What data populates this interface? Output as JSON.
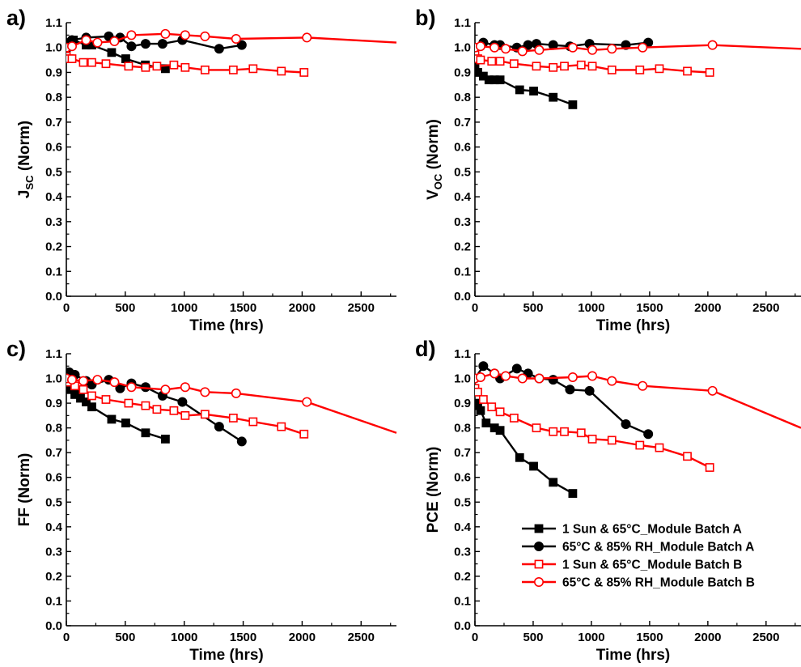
{
  "chart_data": [
    {
      "panel": "a)",
      "type": "line",
      "xlabel": "Time (hrs)",
      "ylabel": "J",
      "ylabel_sub": "SC",
      "ylabel_suffix": " (Norm)",
      "xlim": [
        0,
        2800
      ],
      "ylim": [
        0.0,
        1.1
      ],
      "xticks": [
        "0",
        "500",
        "1000",
        "1500",
        "2000",
        "2500"
      ],
      "yticks": [
        "0.0",
        "0.1",
        "0.2",
        "0.3",
        "0.4",
        "0.5",
        "0.6",
        "0.7",
        "0.8",
        "0.9",
        "1.0",
        "1.1"
      ],
      "series": [
        {
          "name": "1 Sun & 65°C_Module Batch A",
          "color": "#000000",
          "marker": "square-filled",
          "x": [
            0,
            24,
            60,
            168,
            216,
            384,
            504,
            670,
            840
          ],
          "y": [
            1.0,
            1.02,
            1.03,
            1.01,
            1.01,
            0.98,
            0.955,
            0.93,
            0.915
          ]
        },
        {
          "name": "65°C & 85% RH_Module Batch A",
          "color": "#000000",
          "marker": "circle-filled",
          "x": [
            0,
            48,
            168,
            360,
            456,
            552,
            672,
            816,
            984,
            1296,
            1488
          ],
          "y": [
            1.0,
            1.03,
            1.04,
            1.045,
            1.04,
            1.005,
            1.015,
            1.015,
            1.03,
            0.995,
            1.01
          ]
        },
        {
          "name": "1 Sun & 65°C_Module Batch B",
          "color": "#ff0000",
          "marker": "square-open",
          "x": [
            0,
            24,
            48,
            144,
            216,
            336,
            528,
            672,
            768,
            912,
            1008,
            1176,
            1416,
            1584,
            1824,
            2016
          ],
          "y": [
            0.965,
            0.955,
            0.955,
            0.94,
            0.94,
            0.935,
            0.925,
            0.92,
            0.925,
            0.93,
            0.92,
            0.91,
            0.91,
            0.915,
            0.905,
            0.9
          ]
        },
        {
          "name": "65°C & 85% RH_Module Batch B",
          "color": "#ff0000",
          "marker": "circle-open",
          "x": [
            0,
            48,
            168,
            264,
            408,
            552,
            840,
            1008,
            1176,
            1440,
            2040,
            2800
          ],
          "y": [
            1.0,
            1.005,
            1.03,
            1.02,
            1.025,
            1.05,
            1.055,
            1.05,
            1.045,
            1.035,
            1.04,
            1.02
          ]
        }
      ]
    },
    {
      "panel": "b)",
      "type": "line",
      "xlabel": "Time (hrs)",
      "ylabel": "V",
      "ylabel_sub": "OC",
      "ylabel_suffix": " (Norm)",
      "xlim": [
        0,
        2800
      ],
      "ylim": [
        0.0,
        1.1
      ],
      "xticks": [
        "0",
        "500",
        "1000",
        "1500",
        "2000",
        "2500"
      ],
      "yticks": [
        "0.0",
        "0.1",
        "0.2",
        "0.3",
        "0.4",
        "0.5",
        "0.6",
        "0.7",
        "0.8",
        "0.9",
        "1.0",
        "1.1"
      ],
      "series": [
        {
          "name": "1 Sun & 65°C_Module Batch A",
          "color": "#000000",
          "marker": "square-filled",
          "x": [
            0,
            24,
            72,
            120,
            168,
            216,
            384,
            504,
            672,
            840
          ],
          "y": [
            0.93,
            0.9,
            0.885,
            0.87,
            0.87,
            0.87,
            0.83,
            0.825,
            0.8,
            0.77
          ]
        },
        {
          "name": "65°C & 85% RH_Module Batch A",
          "color": "#000000",
          "marker": "circle-filled",
          "x": [
            0,
            72,
            168,
            216,
            360,
            456,
            528,
            672,
            816,
            984,
            1296,
            1488
          ],
          "y": [
            1.0,
            1.02,
            1.01,
            1.01,
            1.0,
            1.01,
            1.015,
            1.01,
            1.005,
            1.015,
            1.01,
            1.02
          ]
        },
        {
          "name": "1 Sun & 65°C_Module Batch B",
          "color": "#ff0000",
          "marker": "square-open",
          "x": [
            0,
            24,
            48,
            144,
            216,
            336,
            528,
            672,
            768,
            912,
            1008,
            1176,
            1416,
            1584,
            1824,
            2016
          ],
          "y": [
            0.97,
            0.955,
            0.95,
            0.945,
            0.945,
            0.935,
            0.925,
            0.92,
            0.925,
            0.93,
            0.925,
            0.91,
            0.91,
            0.915,
            0.905,
            0.9
          ]
        },
        {
          "name": "65°C & 85% RH_Module Batch B",
          "color": "#ff0000",
          "marker": "circle-open",
          "x": [
            0,
            48,
            168,
            264,
            408,
            552,
            840,
            1008,
            1176,
            1440,
            2040,
            2800
          ],
          "y": [
            1.0,
            1.005,
            1.0,
            0.995,
            0.985,
            0.99,
            1.0,
            0.99,
            0.995,
            1.0,
            1.01,
            0.995
          ]
        }
      ]
    },
    {
      "panel": "c)",
      "type": "line",
      "xlabel": "Time (hrs)",
      "ylabel": "FF (Norm)",
      "ylabel_sub": "",
      "ylabel_suffix": "",
      "xlim": [
        0,
        2800
      ],
      "ylim": [
        0.0,
        1.1
      ],
      "xticks": [
        "0",
        "500",
        "1000",
        "1500",
        "2000",
        "2500"
      ],
      "yticks": [
        "0.0",
        "0.1",
        "0.2",
        "0.3",
        "0.4",
        "0.5",
        "0.6",
        "0.7",
        "0.8",
        "0.9",
        "1.0",
        "1.1"
      ],
      "series": [
        {
          "name": "1 Sun & 65°C_Module Batch A",
          "color": "#000000",
          "marker": "square-filled",
          "x": [
            0,
            24,
            72,
            120,
            168,
            216,
            384,
            504,
            672,
            840
          ],
          "y": [
            0.97,
            0.955,
            0.935,
            0.92,
            0.905,
            0.885,
            0.835,
            0.82,
            0.78,
            0.755
          ]
        },
        {
          "name": "65°C & 85% RH_Module Batch A",
          "color": "#000000",
          "marker": "circle-filled",
          "x": [
            0,
            24,
            72,
            168,
            216,
            360,
            456,
            552,
            672,
            816,
            984,
            1296,
            1488
          ],
          "y": [
            1.0,
            1.025,
            1.015,
            0.99,
            0.975,
            0.995,
            0.96,
            0.98,
            0.965,
            0.93,
            0.905,
            0.805,
            0.745
          ]
        },
        {
          "name": "1 Sun & 65°C_Module Batch B",
          "color": "#ff0000",
          "marker": "square-open",
          "x": [
            0,
            24,
            72,
            144,
            216,
            336,
            528,
            672,
            768,
            912,
            1008,
            1176,
            1416,
            1584,
            1824,
            2016
          ],
          "y": [
            0.99,
            0.985,
            0.97,
            0.955,
            0.93,
            0.915,
            0.9,
            0.89,
            0.875,
            0.87,
            0.85,
            0.855,
            0.84,
            0.825,
            0.805,
            0.775
          ]
        },
        {
          "name": "65°C & 85% RH_Module Batch B",
          "color": "#ff0000",
          "marker": "circle-open",
          "x": [
            0,
            48,
            144,
            264,
            408,
            552,
            840,
            1008,
            1176,
            1440,
            2040,
            2800
          ],
          "y": [
            1.0,
            0.995,
            0.99,
            0.995,
            0.985,
            0.965,
            0.955,
            0.965,
            0.945,
            0.94,
            0.905,
            0.78
          ]
        }
      ]
    },
    {
      "panel": "d)",
      "type": "line",
      "xlabel": "Time (hrs)",
      "ylabel": "PCE (Norm)",
      "ylabel_sub": "",
      "ylabel_suffix": "",
      "xlim": [
        0,
        2800
      ],
      "ylim": [
        0.0,
        1.1
      ],
      "xticks": [
        "0",
        "500",
        "1000",
        "1500",
        "2000",
        "2500"
      ],
      "yticks": [
        "0.0",
        "0.1",
        "0.2",
        "0.3",
        "0.4",
        "0.5",
        "0.6",
        "0.7",
        "0.8",
        "0.9",
        "1.0",
        "1.1"
      ],
      "legend_position": "bottom-right",
      "series": [
        {
          "name": "1 Sun & 65°C_Module Batch A",
          "color": "#000000",
          "marker": "square-filled",
          "x": [
            0,
            24,
            48,
            96,
            168,
            216,
            384,
            504,
            672,
            840
          ],
          "y": [
            0.9,
            0.89,
            0.87,
            0.82,
            0.8,
            0.79,
            0.68,
            0.645,
            0.58,
            0.535
          ]
        },
        {
          "name": "65°C & 85% RH_Module Batch A",
          "color": "#000000",
          "marker": "circle-filled",
          "x": [
            0,
            72,
            168,
            216,
            360,
            456,
            552,
            672,
            816,
            984,
            1296,
            1488
          ],
          "y": [
            1.0,
            1.05,
            1.02,
            1.0,
            1.04,
            1.02,
            1.0,
            0.995,
            0.955,
            0.95,
            0.815,
            0.775
          ]
        },
        {
          "name": "1 Sun & 65°C_Module Batch B",
          "color": "#ff0000",
          "marker": "square-open",
          "x": [
            0,
            24,
            72,
            144,
            216,
            336,
            528,
            672,
            768,
            912,
            1008,
            1176,
            1416,
            1584,
            1824,
            2016
          ],
          "y": [
            0.96,
            0.945,
            0.915,
            0.885,
            0.865,
            0.84,
            0.8,
            0.785,
            0.785,
            0.78,
            0.755,
            0.75,
            0.73,
            0.72,
            0.685,
            0.64
          ]
        },
        {
          "name": "65°C & 85% RH_Module Batch B",
          "color": "#ff0000",
          "marker": "circle-open",
          "x": [
            0,
            48,
            168,
            264,
            408,
            552,
            840,
            1008,
            1176,
            1440,
            2040,
            2800
          ],
          "y": [
            1.0,
            1.005,
            1.02,
            1.01,
            1.0,
            1.0,
            1.005,
            1.01,
            0.99,
            0.97,
            0.95,
            0.8
          ]
        }
      ]
    }
  ]
}
